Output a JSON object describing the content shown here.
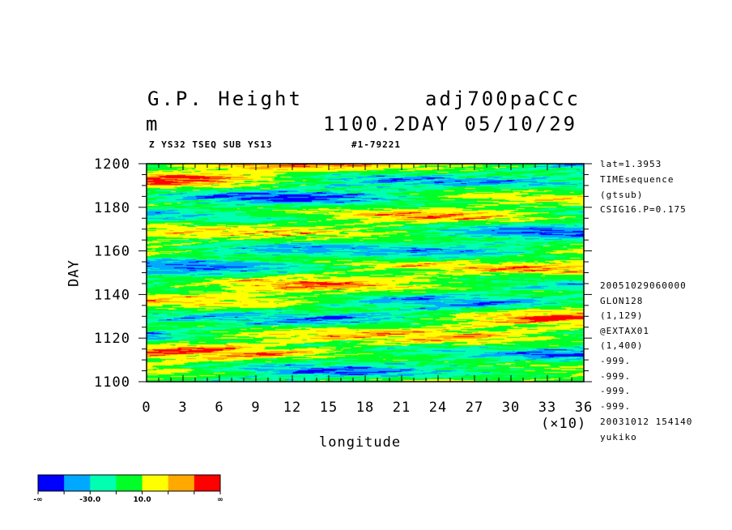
{
  "header": {
    "title_left": "G.P. Height",
    "title_right": "adj700paCCc",
    "unit": "m",
    "time_label": "1100.2DAY 05/10/29",
    "sub_left": "Z YS32 TSEQ SUB YS13",
    "sub_right": "#1-79221"
  },
  "side_info": [
    "lat=1.3953",
    "TIMEsequence",
    "(gtsub)",
    "CSIG16.P=0.175",
    "20051029060000",
    "GLON128",
    "(1,129)",
    "@EXTAX01",
    "(1,400)",
    "-999.",
    "-999.",
    "-999.",
    "-999.",
    "20031012 154140",
    "yukiko"
  ],
  "chart_data": {
    "type": "heatmap",
    "xlabel": "longitude",
    "x_multiplier": "(×10)",
    "ylabel": "DAY",
    "xlim": [
      0,
      36
    ],
    "ylim": [
      1100,
      1200
    ],
    "x_ticks": [
      "0",
      "3",
      "6",
      "9",
      "12",
      "15",
      "18",
      "21",
      "24",
      "27",
      "30",
      "33",
      "36"
    ],
    "y_ticks": [
      "1100",
      "1120",
      "1140",
      "1160",
      "1180",
      "1200"
    ],
    "colorbar": {
      "colors": [
        "#0000ff",
        "#00a8ff",
        "#00ffb0",
        "#00ff28",
        "#ffff00",
        "#ffa800",
        "#ff0000"
      ],
      "labels": [
        "-∞",
        "-30.0",
        "10.0",
        "∞"
      ]
    }
  }
}
